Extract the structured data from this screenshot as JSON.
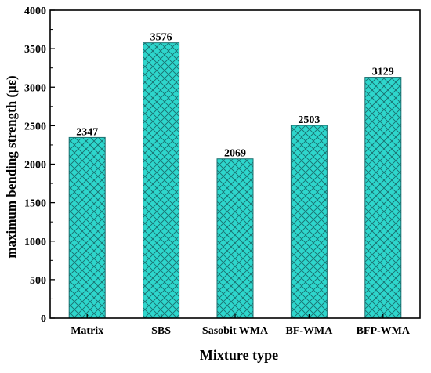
{
  "chart_data": {
    "type": "bar",
    "title": "",
    "xlabel": "Mixture type",
    "ylabel": "maximum bending strength (με)",
    "categories": [
      "Matrix",
      "SBS",
      "Sasobit WMA",
      "BF-WMA",
      "BFP-WMA"
    ],
    "values": [
      2347,
      3576,
      2069,
      2503,
      3129
    ],
    "data_labels": [
      "2347",
      "3576",
      "2069",
      "2503",
      "3129"
    ],
    "ylim": [
      0,
      4000
    ],
    "yticks": [
      0,
      500,
      1000,
      1500,
      2000,
      2500,
      3000,
      3500,
      4000
    ],
    "grid": false,
    "legend": "none",
    "bar_color": "#2ed6cc",
    "hatch_color": "#1a6e6e",
    "bar_pattern": "crosshatch"
  }
}
